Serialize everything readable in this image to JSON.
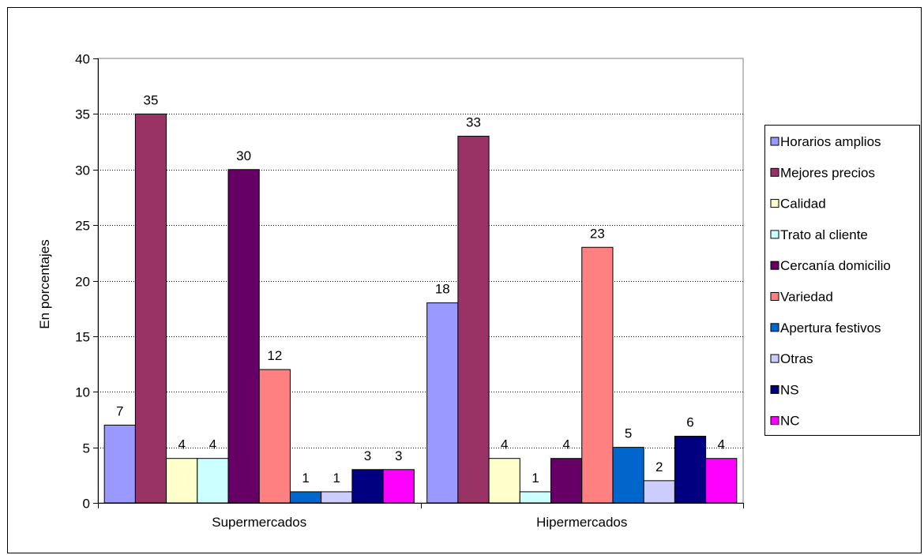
{
  "chart_data": {
    "type": "bar",
    "title": "",
    "xlabel": "",
    "ylabel": "En porcentajes",
    "ylim": [
      0,
      40
    ],
    "yticks": [
      0,
      5,
      10,
      15,
      20,
      25,
      30,
      35,
      40
    ],
    "grid": true,
    "legend_position": "right",
    "categories": [
      "Supermercados",
      "Hipermercados"
    ],
    "series": [
      {
        "name": "Horarios amplios",
        "color": "#9999FF",
        "values": [
          7,
          18
        ]
      },
      {
        "name": "Mejores precios",
        "color": "#993366",
        "values": [
          35,
          33
        ]
      },
      {
        "name": "Calidad",
        "color": "#FFFFCC",
        "values": [
          4,
          4
        ]
      },
      {
        "name": "Trato al cliente",
        "color": "#CCFFFF",
        "values": [
          4,
          1
        ]
      },
      {
        "name": "Cercanía domicilio",
        "color": "#660066",
        "values": [
          30,
          4
        ]
      },
      {
        "name": "Variedad",
        "color": "#FF8080",
        "values": [
          12,
          23
        ]
      },
      {
        "name": "Apertura festivos",
        "color": "#0066CC",
        "values": [
          1,
          5
        ]
      },
      {
        "name": "Otras",
        "color": "#CCCCFF",
        "values": [
          1,
          2
        ]
      },
      {
        "name": "NS",
        "color": "#000080",
        "values": [
          3,
          6
        ]
      },
      {
        "name": "NC",
        "color": "#FF00FF",
        "values": [
          3,
          4
        ]
      }
    ]
  }
}
